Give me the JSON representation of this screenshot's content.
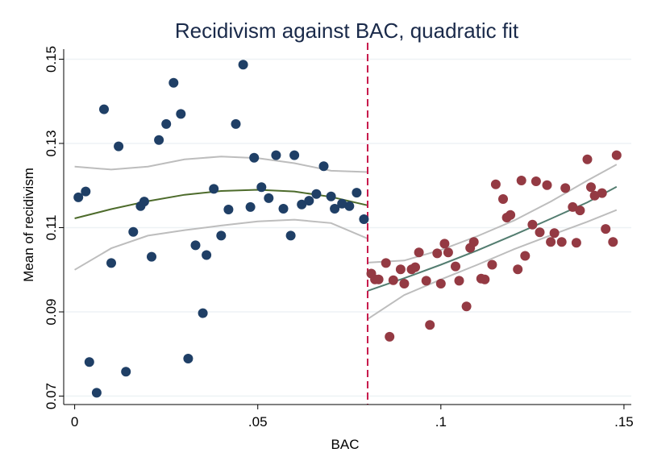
{
  "chart_data": {
    "type": "scatter",
    "title": "Recidivism against BAC, quadratic fit",
    "xlabel": "BAC",
    "ylabel": "Mean of recidivism",
    "xlim": [
      -0.003,
      0.152
    ],
    "ylim": [
      0.068,
      0.152
    ],
    "x_ticks": [
      {
        "value": 0,
        "label": "0"
      },
      {
        "value": 0.05,
        "label": ".05"
      },
      {
        "value": 0.1,
        "label": ".1"
      },
      {
        "value": 0.15,
        "label": ".15"
      }
    ],
    "y_ticks": [
      {
        "value": 0.07,
        "label": "0.07"
      },
      {
        "value": 0.09,
        "label": "0.09"
      },
      {
        "value": 0.11,
        "label": "0.11"
      },
      {
        "value": 0.13,
        "label": "0.13"
      },
      {
        "value": 0.15,
        "label": "0.15"
      }
    ],
    "grid": true,
    "cutoff": 0.08,
    "colors": {
      "left_points": "#1f3f66",
      "right_points": "#943a43",
      "left_fit": "#4d6b2b",
      "right_fit": "#537d70",
      "ci": "#bdbdbd",
      "cutoff": "#c8194b",
      "title": "#1a2a4a",
      "grid": "#eef2f5"
    },
    "series": [
      {
        "side": "left",
        "points": [
          [
            0.001,
            0.1172
          ],
          [
            0.003,
            0.1186
          ],
          [
            0.004,
            0.0781
          ],
          [
            0.006,
            0.0708
          ],
          [
            0.008,
            0.1381
          ],
          [
            0.01,
            0.1016
          ],
          [
            0.012,
            0.1293
          ],
          [
            0.014,
            0.0758
          ],
          [
            0.016,
            0.109
          ],
          [
            0.018,
            0.1151
          ],
          [
            0.019,
            0.1162
          ],
          [
            0.021,
            0.1031
          ],
          [
            0.023,
            0.1308
          ],
          [
            0.025,
            0.1346
          ],
          [
            0.027,
            0.1444
          ],
          [
            0.029,
            0.137
          ],
          [
            0.031,
            0.0789
          ],
          [
            0.033,
            0.1058
          ],
          [
            0.035,
            0.0897
          ],
          [
            0.036,
            0.1035
          ],
          [
            0.038,
            0.1192
          ],
          [
            0.04,
            0.1081
          ],
          [
            0.042,
            0.1143
          ],
          [
            0.044,
            0.1346
          ],
          [
            0.046,
            0.1487
          ],
          [
            0.048,
            0.1149
          ],
          [
            0.049,
            0.1266
          ],
          [
            0.051,
            0.1196
          ],
          [
            0.053,
            0.117
          ],
          [
            0.055,
            0.1272
          ],
          [
            0.057,
            0.1145
          ],
          [
            0.059,
            0.1081
          ],
          [
            0.06,
            0.1272
          ],
          [
            0.062,
            0.1155
          ],
          [
            0.064,
            0.1164
          ],
          [
            0.066,
            0.118
          ],
          [
            0.068,
            0.1246
          ],
          [
            0.07,
            0.1174
          ],
          [
            0.071,
            0.1145
          ],
          [
            0.073,
            0.1157
          ],
          [
            0.075,
            0.1151
          ],
          [
            0.077,
            0.1183
          ],
          [
            0.079,
            0.112
          ]
        ]
      },
      {
        "side": "right",
        "points": [
          [
            0.081,
            0.0991
          ],
          [
            0.082,
            0.0977
          ],
          [
            0.083,
            0.0977
          ],
          [
            0.085,
            0.1016
          ],
          [
            0.086,
            0.0841
          ],
          [
            0.087,
            0.0975
          ],
          [
            0.089,
            0.1001
          ],
          [
            0.09,
            0.0967
          ],
          [
            0.092,
            0.1001
          ],
          [
            0.093,
            0.1006
          ],
          [
            0.094,
            0.1041
          ],
          [
            0.096,
            0.0974
          ],
          [
            0.097,
            0.0869
          ],
          [
            0.099,
            0.1039
          ],
          [
            0.1,
            0.0967
          ],
          [
            0.101,
            0.1062
          ],
          [
            0.102,
            0.1041
          ],
          [
            0.104,
            0.1008
          ],
          [
            0.105,
            0.0974
          ],
          [
            0.107,
            0.0913
          ],
          [
            0.108,
            0.1052
          ],
          [
            0.109,
            0.1066
          ],
          [
            0.111,
            0.0979
          ],
          [
            0.112,
            0.0977
          ],
          [
            0.114,
            0.1012
          ],
          [
            0.115,
            0.1203
          ],
          [
            0.117,
            0.1168
          ],
          [
            0.118,
            0.1124
          ],
          [
            0.119,
            0.113
          ],
          [
            0.121,
            0.1001
          ],
          [
            0.122,
            0.1212
          ],
          [
            0.123,
            0.1033
          ],
          [
            0.125,
            0.1107
          ],
          [
            0.126,
            0.121
          ],
          [
            0.127,
            0.1089
          ],
          [
            0.129,
            0.1201
          ],
          [
            0.13,
            0.1066
          ],
          [
            0.131,
            0.1087
          ],
          [
            0.133,
            0.1066
          ],
          [
            0.134,
            0.1194
          ],
          [
            0.136,
            0.1149
          ],
          [
            0.137,
            0.1064
          ],
          [
            0.138,
            0.1141
          ],
          [
            0.14,
            0.1262
          ],
          [
            0.141,
            0.1196
          ],
          [
            0.142,
            0.1176
          ],
          [
            0.144,
            0.1182
          ],
          [
            0.145,
            0.1097
          ],
          [
            0.147,
            0.1066
          ],
          [
            0.148,
            0.1272
          ]
        ]
      }
    ],
    "fits": [
      {
        "side": "left",
        "fit": [
          [
            0.0,
            0.1122
          ],
          [
            0.01,
            0.1144
          ],
          [
            0.02,
            0.1163
          ],
          [
            0.03,
            0.1178
          ],
          [
            0.04,
            0.1187
          ],
          [
            0.05,
            0.119
          ],
          [
            0.06,
            0.1186
          ],
          [
            0.07,
            0.1173
          ],
          [
            0.08,
            0.1153
          ]
        ],
        "ci_upper": [
          [
            0.0,
            0.1245
          ],
          [
            0.01,
            0.1238
          ],
          [
            0.02,
            0.1245
          ],
          [
            0.03,
            0.1262
          ],
          [
            0.04,
            0.1269
          ],
          [
            0.05,
            0.1265
          ],
          [
            0.06,
            0.1253
          ],
          [
            0.07,
            0.1235
          ],
          [
            0.08,
            0.1232
          ]
        ],
        "ci_lower": [
          [
            0.0,
            0.1
          ],
          [
            0.01,
            0.1051
          ],
          [
            0.02,
            0.1081
          ],
          [
            0.03,
            0.1094
          ],
          [
            0.04,
            0.1105
          ],
          [
            0.05,
            0.1115
          ],
          [
            0.06,
            0.1119
          ],
          [
            0.07,
            0.1111
          ],
          [
            0.08,
            0.1074
          ]
        ]
      },
      {
        "side": "right",
        "fit": [
          [
            0.08,
            0.095
          ],
          [
            0.09,
            0.098
          ],
          [
            0.1,
            0.1012
          ],
          [
            0.11,
            0.1046
          ],
          [
            0.12,
            0.1083
          ],
          [
            0.13,
            0.1121
          ],
          [
            0.14,
            0.116
          ],
          [
            0.148,
            0.1197
          ]
        ],
        "ci_upper": [
          [
            0.08,
            0.1017
          ],
          [
            0.09,
            0.1022
          ],
          [
            0.1,
            0.1047
          ],
          [
            0.11,
            0.108
          ],
          [
            0.12,
            0.1117
          ],
          [
            0.13,
            0.1162
          ],
          [
            0.14,
            0.1212
          ],
          [
            0.148,
            0.125
          ]
        ],
        "ci_lower": [
          [
            0.08,
            0.0883
          ],
          [
            0.09,
            0.094
          ],
          [
            0.1,
            0.0977
          ],
          [
            0.11,
            0.1012
          ],
          [
            0.12,
            0.1049
          ],
          [
            0.13,
            0.1082
          ],
          [
            0.14,
            0.1114
          ],
          [
            0.148,
            0.1142
          ]
        ]
      }
    ]
  }
}
